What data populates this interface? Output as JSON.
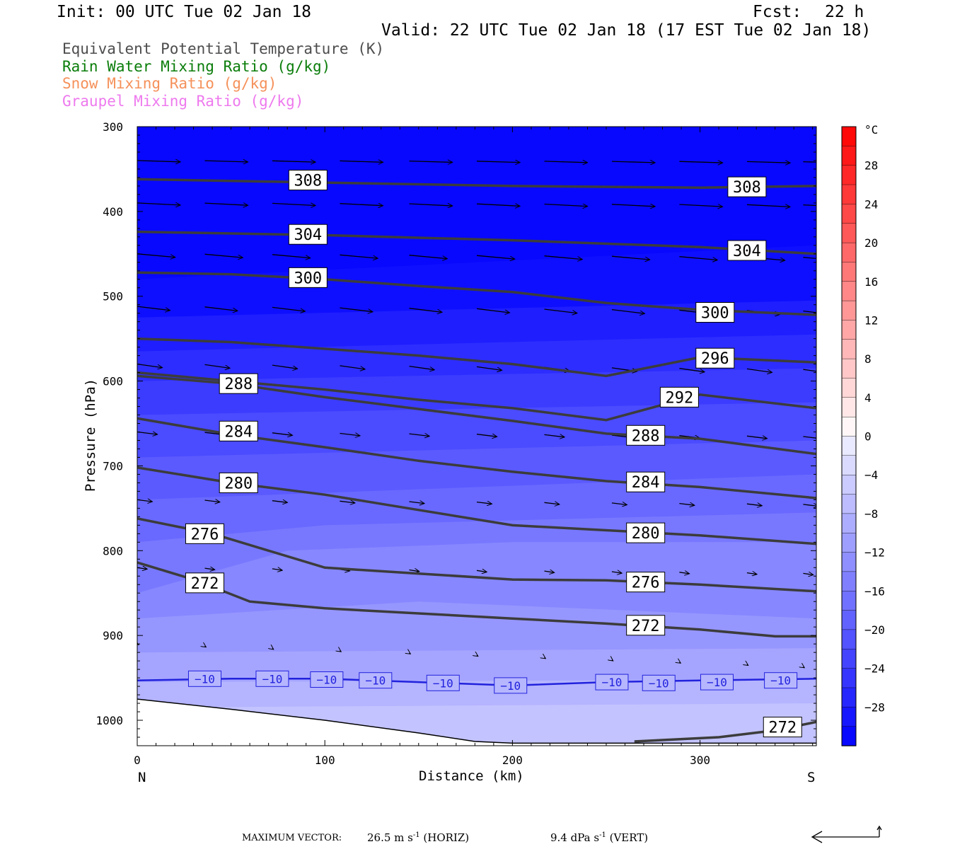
{
  "header": {
    "init": "Init: 00 UTC Tue 02 Jan 18",
    "fcst_label": "Fcst:",
    "fcst_value": "22 h",
    "valid": "Valid: 22 UTC Tue 02 Jan 18 (17 EST Tue 02 Jan 18)"
  },
  "legend": [
    {
      "text": "Equivalent Potential Temperature (K)",
      "color": "#4d4d4d"
    },
    {
      "text": "Rain Water Mixing Ratio (g/kg)",
      "color": "#0a7d0a"
    },
    {
      "text": "Snow Mixing Ratio (g/kg)",
      "color": "#f5915a"
    },
    {
      "text": "Graupel Mixing Ratio (g/kg)",
      "color": "#ee7aee"
    }
  ],
  "chart_data": {
    "type": "cross-section",
    "xlabel": "Distance (km)",
    "ylabel": "Pressure (hPa)",
    "xlim": [
      0,
      362
    ],
    "ylim": [
      300,
      1030
    ],
    "x_ticks": [
      0,
      100,
      200,
      300
    ],
    "y_ticks": [
      300,
      400,
      500,
      600,
      700,
      800,
      900,
      1000
    ],
    "end_labels": {
      "left": "N",
      "right": "S"
    },
    "theta_e_contours": [
      {
        "value": 308,
        "points": [
          [
            0,
            362
          ],
          [
            100,
            366
          ],
          [
            200,
            370
          ],
          [
            300,
            372
          ],
          [
            362,
            370
          ]
        ],
        "labels": [
          [
            91,
            363
          ],
          [
            325,
            371
          ]
        ]
      },
      {
        "value": 304,
        "points": [
          [
            0,
            424
          ],
          [
            100,
            428
          ],
          [
            200,
            434
          ],
          [
            300,
            442
          ],
          [
            362,
            450
          ]
        ],
        "labels": [
          [
            91,
            427
          ],
          [
            325,
            446
          ]
        ]
      },
      {
        "value": 300,
        "points": [
          [
            0,
            472
          ],
          [
            50,
            474
          ],
          [
            100,
            480
          ],
          [
            150,
            488
          ],
          [
            200,
            495
          ],
          [
            250,
            508
          ],
          [
            300,
            516
          ],
          [
            362,
            522
          ]
        ],
        "labels": [
          [
            91,
            478
          ],
          [
            308,
            519
          ]
        ]
      },
      {
        "value": 296,
        "points": [
          [
            0,
            550
          ],
          [
            50,
            554
          ],
          [
            100,
            562
          ],
          [
            150,
            570
          ],
          [
            200,
            580
          ],
          [
            250,
            594
          ],
          [
            300,
            572
          ],
          [
            362,
            578
          ]
        ],
        "labels": [
          [
            308,
            573
          ]
        ]
      },
      {
        "value": 292,
        "points": [
          [
            0,
            590
          ],
          [
            50,
            600
          ],
          [
            100,
            610
          ],
          [
            150,
            622
          ],
          [
            200,
            632
          ],
          [
            250,
            646
          ],
          [
            300,
            616
          ],
          [
            362,
            632
          ]
        ],
        "labels": [
          [
            289,
            619
          ]
        ]
      },
      {
        "value": 288,
        "points": [
          [
            0,
            594
          ],
          [
            50,
            603
          ],
          [
            100,
            619
          ],
          [
            150,
            633
          ],
          [
            200,
            647
          ],
          [
            250,
            662
          ],
          [
            300,
            668
          ],
          [
            362,
            686
          ]
        ],
        "labels": [
          [
            54,
            603
          ],
          [
            271,
            664
          ]
        ]
      },
      {
        "value": 284,
        "points": [
          [
            0,
            644
          ],
          [
            50,
            663
          ],
          [
            100,
            678
          ],
          [
            150,
            694
          ],
          [
            200,
            707
          ],
          [
            250,
            718
          ],
          [
            300,
            725
          ],
          [
            362,
            738
          ]
        ],
        "labels": [
          [
            54,
            659
          ],
          [
            271,
            719
          ]
        ]
      },
      {
        "value": 280,
        "points": [
          [
            0,
            702
          ],
          [
            50,
            720
          ],
          [
            100,
            734
          ],
          [
            150,
            752
          ],
          [
            200,
            770
          ],
          [
            250,
            776
          ],
          [
            300,
            782
          ],
          [
            362,
            792
          ]
        ],
        "labels": [
          [
            54,
            720
          ],
          [
            271,
            779
          ]
        ]
      },
      {
        "value": 276,
        "points": [
          [
            0,
            762
          ],
          [
            40,
            780
          ],
          [
            70,
            800
          ],
          [
            100,
            820
          ],
          [
            150,
            827
          ],
          [
            200,
            834
          ],
          [
            250,
            835
          ],
          [
            300,
            840
          ],
          [
            362,
            848
          ]
        ],
        "labels": [
          [
            36,
            780
          ],
          [
            271,
            837
          ]
        ]
      },
      {
        "value": 272,
        "points": [
          [
            0,
            814
          ],
          [
            30,
            834
          ],
          [
            60,
            860
          ],
          [
            100,
            868
          ],
          [
            150,
            874
          ],
          [
            200,
            880
          ],
          [
            250,
            886
          ],
          [
            300,
            893
          ],
          [
            340,
            901
          ],
          [
            362,
            901
          ]
        ],
        "labels": [
          [
            36,
            838
          ],
          [
            271,
            888
          ]
        ]
      },
      {
        "value": 272,
        "points": [
          [
            265,
            1025
          ],
          [
            310,
            1020
          ],
          [
            340,
            1012
          ],
          [
            362,
            1002
          ]
        ],
        "labels": [
          [
            344,
            1008
          ]
        ]
      }
    ],
    "temperature_isotherm": {
      "value": -10,
      "color": "#2222dd",
      "points": [
        [
          0,
          953
        ],
        [
          50,
          951
        ],
        [
          100,
          951
        ],
        [
          150,
          955
        ],
        [
          200,
          959
        ],
        [
          250,
          955
        ],
        [
          300,
          953
        ],
        [
          362,
          951
        ]
      ],
      "labels": [
        [
          36,
          951
        ],
        [
          72,
          951
        ],
        [
          101,
          952
        ],
        [
          127,
          953
        ],
        [
          163,
          956
        ],
        [
          199,
          959
        ],
        [
          253,
          955
        ],
        [
          278,
          956
        ],
        [
          309,
          955
        ],
        [
          343,
          953
        ]
      ]
    },
    "terrain": [
      [
        0,
        975
      ],
      [
        50,
        987
      ],
      [
        100,
        1000
      ],
      [
        150,
        1015
      ],
      [
        180,
        1025
      ],
      [
        200,
        1027
      ],
      [
        362,
        1027
      ]
    ],
    "temperature_colorbar": {
      "unit": "°C",
      "labels": [
        "28",
        "24",
        "20",
        "16",
        "12",
        "8",
        "4",
        "0",
        "−4",
        "−8",
        "−12",
        "−16",
        "−20",
        "−24",
        "−28"
      ],
      "label_values": [
        28,
        24,
        20,
        16,
        12,
        8,
        4,
        0,
        -4,
        -8,
        -12,
        -16,
        -20,
        -24,
        -28
      ],
      "range": [
        -32,
        32
      ],
      "step": 2
    },
    "wind_vectors_note": "circulation vectors in plane of section",
    "wind_rows": [
      {
        "p": 340,
        "angle": 0.03,
        "len": 0.85
      },
      {
        "p": 390,
        "angle": 0.05,
        "len": 0.85
      },
      {
        "p": 450,
        "angle": 0.09,
        "len": 0.75
      },
      {
        "p": 512,
        "angle": 0.12,
        "len": 0.65
      },
      {
        "p": 580,
        "angle": 0.14,
        "len": 0.5
      },
      {
        "p": 660,
        "angle": 0.12,
        "len": 0.4
      },
      {
        "p": 740,
        "angle": 0.12,
        "len": 0.3
      },
      {
        "p": 820,
        "angle": 0.15,
        "len": 0.2
      },
      {
        "p": 910,
        "angle": 0.6,
        "len": 0.03
      }
    ]
  },
  "footer": {
    "max_vector_label": "MAXIMUM VECTOR:",
    "horiz_value": "26.5 m s",
    "horiz_unit": "(HORIZ)",
    "vert_value": "9.4 dPa s",
    "vert_unit": "(VERT)",
    "exponent": "-1"
  }
}
